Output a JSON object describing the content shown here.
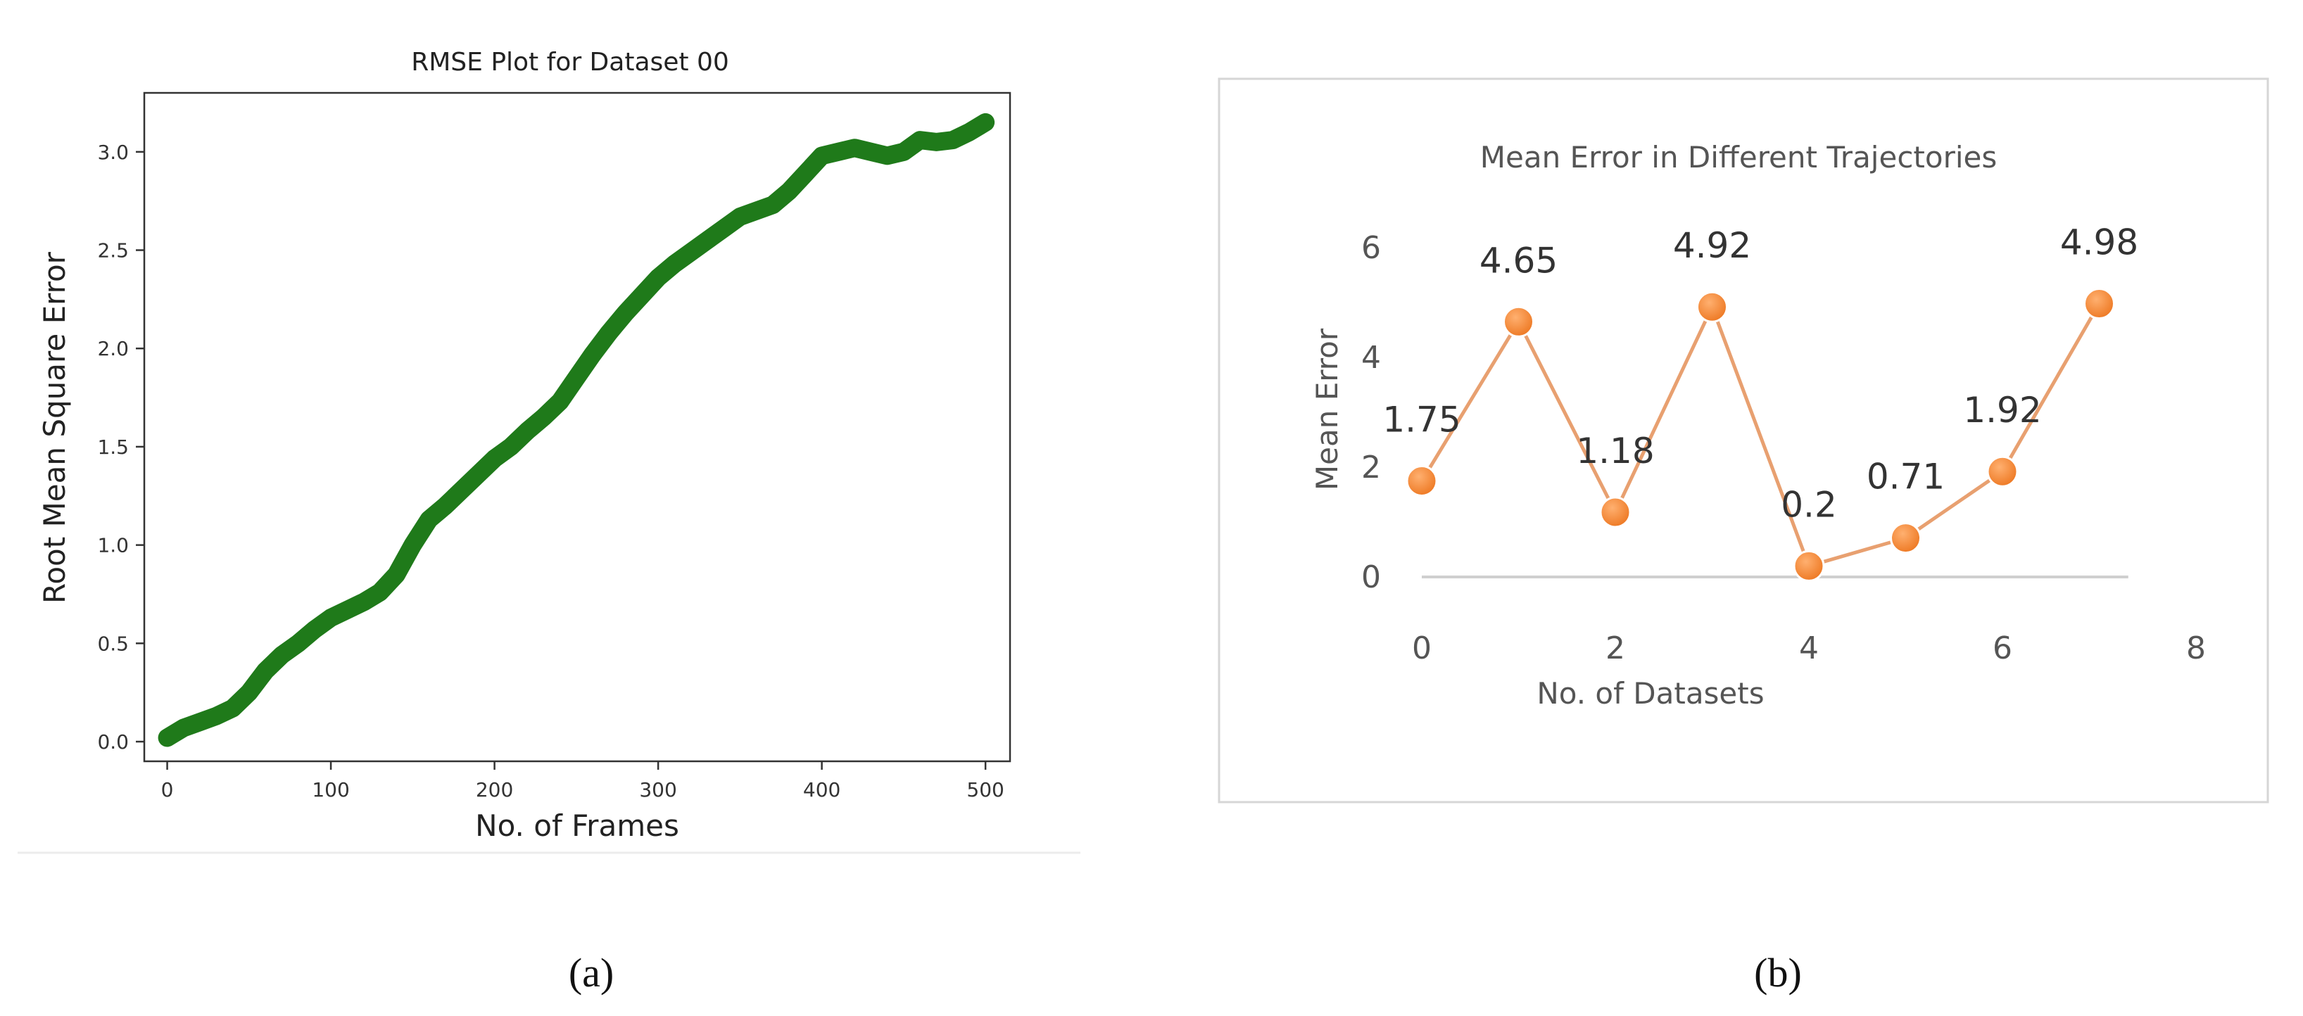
{
  "figure": {
    "panel_a_label": "(a)",
    "panel_b_label": "(b)"
  },
  "chart_data": [
    {
      "type": "line",
      "title": "RMSE Plot for Dataset 00",
      "xlabel": "No. of Frames",
      "ylabel": "Root Mean Square Error",
      "xlim": [
        -14,
        515
      ],
      "ylim": [
        -0.1,
        3.3
      ],
      "xticks": [
        0,
        100,
        200,
        300,
        400,
        500
      ],
      "yticks": [
        0.0,
        0.5,
        1.0,
        1.5,
        2.0,
        2.5,
        3.0
      ],
      "xtick_labels": [
        "0",
        "100",
        "200",
        "300",
        "400",
        "500"
      ],
      "ytick_labels": [
        "0.0",
        "0.5",
        "1.0",
        "1.5",
        "2.0",
        "2.5",
        "3.0"
      ],
      "grid": false,
      "line_color": "#1f7a1a",
      "points": [
        [
          0,
          0.02
        ],
        [
          10,
          0.07
        ],
        [
          20,
          0.1
        ],
        [
          30,
          0.13
        ],
        [
          40,
          0.17
        ],
        [
          50,
          0.25
        ],
        [
          60,
          0.36
        ],
        [
          70,
          0.44
        ],
        [
          80,
          0.5
        ],
        [
          90,
          0.57
        ],
        [
          100,
          0.63
        ],
        [
          110,
          0.67
        ],
        [
          120,
          0.71
        ],
        [
          130,
          0.76
        ],
        [
          140,
          0.85
        ],
        [
          150,
          1.0
        ],
        [
          160,
          1.13
        ],
        [
          170,
          1.2
        ],
        [
          180,
          1.28
        ],
        [
          190,
          1.36
        ],
        [
          200,
          1.44
        ],
        [
          210,
          1.5
        ],
        [
          220,
          1.58
        ],
        [
          230,
          1.65
        ],
        [
          240,
          1.73
        ],
        [
          250,
          1.85
        ],
        [
          260,
          1.97
        ],
        [
          270,
          2.08
        ],
        [
          280,
          2.18
        ],
        [
          290,
          2.27
        ],
        [
          300,
          2.36
        ],
        [
          310,
          2.43
        ],
        [
          320,
          2.49
        ],
        [
          330,
          2.55
        ],
        [
          340,
          2.61
        ],
        [
          350,
          2.67
        ],
        [
          360,
          2.7
        ],
        [
          370,
          2.73
        ],
        [
          380,
          2.8
        ],
        [
          390,
          2.89
        ],
        [
          400,
          2.98
        ],
        [
          410,
          3.0
        ],
        [
          420,
          3.02
        ],
        [
          430,
          3.0
        ],
        [
          440,
          2.98
        ],
        [
          450,
          3.0
        ],
        [
          460,
          3.06
        ],
        [
          470,
          3.05
        ],
        [
          480,
          3.06
        ],
        [
          490,
          3.1
        ],
        [
          500,
          3.15
        ]
      ]
    },
    {
      "type": "line",
      "title": "Mean Error in Different Trajectories",
      "xlabel": "No. of Datasets",
      "ylabel": "Mean Error",
      "xlim": [
        0,
        8
      ],
      "ylim": [
        0,
        6
      ],
      "xticks": [
        0,
        2,
        4,
        6,
        8
      ],
      "yticks": [
        0,
        2,
        4,
        6
      ],
      "xtick_labels": [
        "0",
        "2",
        "4",
        "6",
        "8"
      ],
      "ytick_labels": [
        "0",
        "2",
        "4",
        "6"
      ],
      "grid": false,
      "line_color": "#e8a070",
      "marker_color": "#f58a3a",
      "x": [
        0,
        1,
        2,
        3,
        4,
        5,
        6,
        7
      ],
      "values": [
        1.75,
        4.65,
        1.18,
        4.92,
        0.2,
        0.71,
        1.92,
        4.98
      ],
      "data_labels": [
        "1.75",
        "4.65",
        "1.18",
        "4.92",
        "0.2",
        "0.71",
        "1.92",
        "4.98"
      ]
    }
  ]
}
